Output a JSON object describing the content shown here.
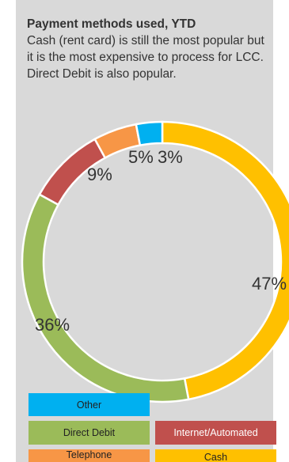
{
  "heading": {
    "title": "Payment methods used, YTD",
    "body": "Cash (rent card) is still the most popular but it is the most expensive to process for LCC. Direct Debit is also popular."
  },
  "chart_data": {
    "type": "pie",
    "variant": "donut",
    "title": "",
    "categories": [
      "Cash",
      "Direct Debit",
      "Internet/Automated",
      "Telephone",
      "Other"
    ],
    "values": [
      47,
      36,
      9,
      5,
      3
    ],
    "value_labels": [
      "47%",
      "36%",
      "9%",
      "5%",
      "3%"
    ],
    "colors": [
      "#ffc000",
      "#9bbb59",
      "#c0504d",
      "#f79646",
      "#00b0f0"
    ],
    "legend_position": "bottom"
  },
  "legend": {
    "other": "Other",
    "direct_debit": "Direct Debit",
    "internet": "Internet/Automated",
    "telephone": "Telephone",
    "cash": "Cash"
  }
}
